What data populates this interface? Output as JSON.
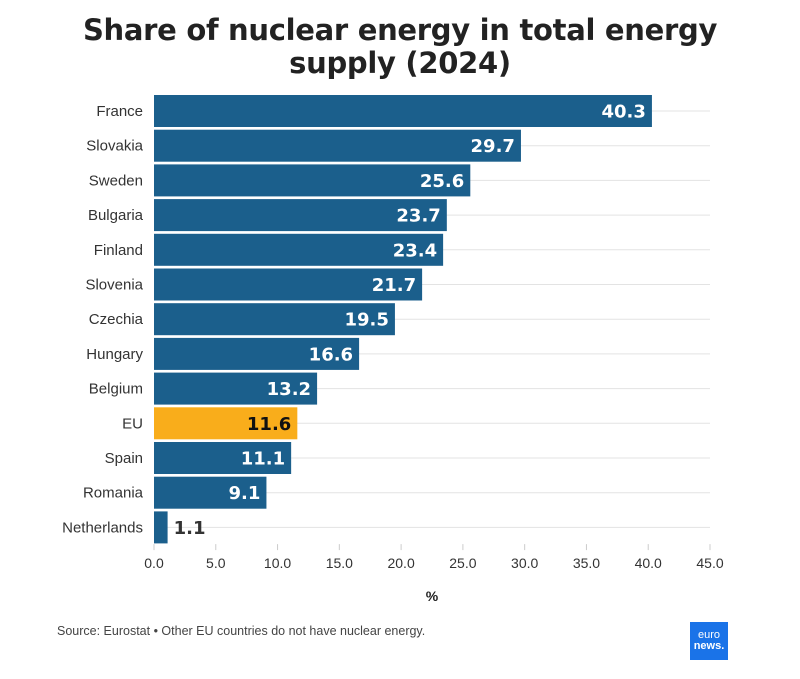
{
  "chart_data": {
    "type": "bar",
    "orientation": "horizontal",
    "title": "Share of nuclear energy in total energy supply (2024)",
    "xlabel": "%",
    "ylabel": "",
    "xlim": [
      0,
      45
    ],
    "xticks": [
      "0.0",
      "5.0",
      "10.0",
      "15.0",
      "20.0",
      "25.0",
      "30.0",
      "35.0",
      "40.0",
      "45.0"
    ],
    "grid": true,
    "categories": [
      "France",
      "Slovakia",
      "Sweden",
      "Bulgaria",
      "Finland",
      "Slovenia",
      "Czechia",
      "Hungary",
      "Belgium",
      "EU",
      "Spain",
      "Romania",
      "Netherlands"
    ],
    "values": [
      40.3,
      29.7,
      25.6,
      23.7,
      23.4,
      21.7,
      19.5,
      16.6,
      13.2,
      11.6,
      11.1,
      9.1,
      1.1
    ],
    "colors": {
      "default": "#1b5f8c",
      "highlight": "#f9ad1b",
      "highlight_category": "EU"
    }
  },
  "footer": {
    "source": "Source: Eurostat • Other EU countries do not have nuclear energy.",
    "logo_line1": "euro",
    "logo_line2": "news."
  }
}
